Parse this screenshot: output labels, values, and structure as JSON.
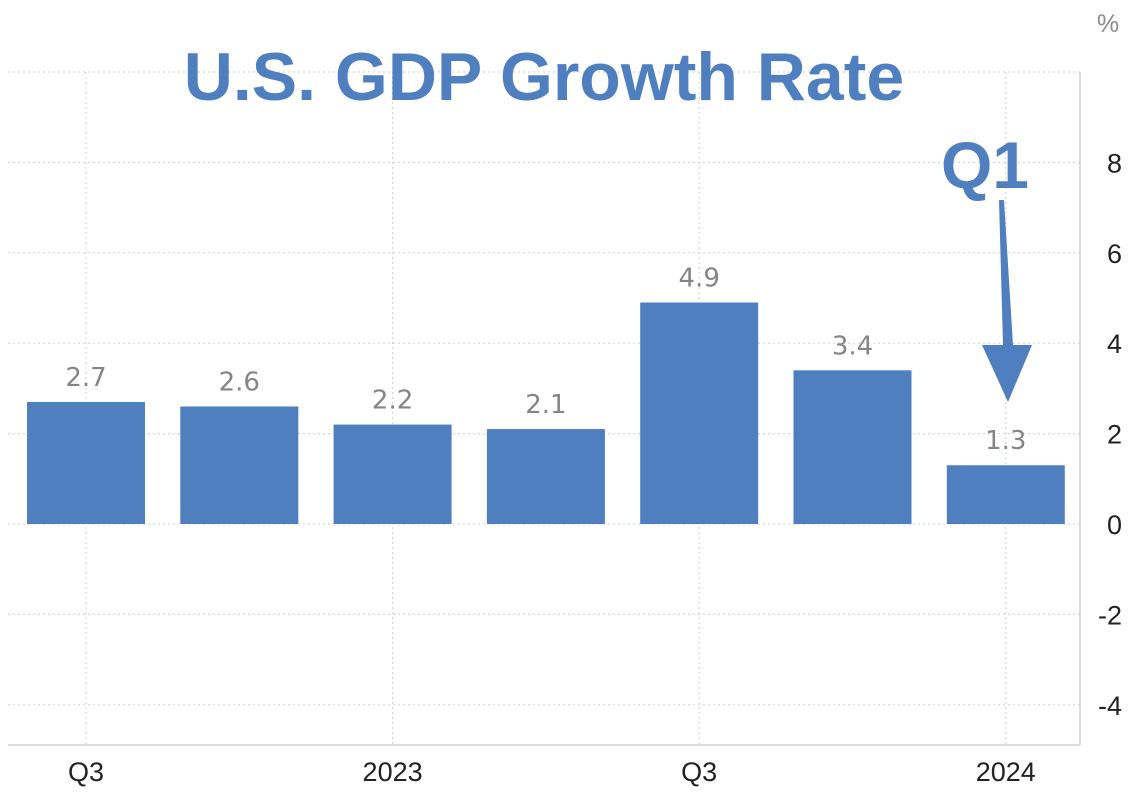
{
  "chart_data": {
    "type": "bar",
    "title": "U.S. GDP Growth Rate",
    "unit": "%",
    "categories": [
      "",
      "",
      "",
      "",
      "",
      "",
      ""
    ],
    "values": [
      2.7,
      2.6,
      2.2,
      2.1,
      4.9,
      3.4,
      1.3
    ],
    "value_labels": [
      "2.7",
      "2.6",
      "2.2",
      "2.1",
      "4.9",
      "3.4",
      "1.3"
    ],
    "x_tick_labels": [
      {
        "bar_index": 0,
        "label": "Q3"
      },
      {
        "bar_index": 2,
        "label": "2023"
      },
      {
        "bar_index": 4,
        "label": "Q3"
      },
      {
        "bar_index": 6,
        "label": "2024"
      }
    ],
    "y_ticks": [
      8,
      6,
      4,
      2,
      0,
      -2,
      -4
    ],
    "ylim": [
      -5,
      10
    ],
    "y_axis_side": "right",
    "grid": true,
    "legend": false,
    "colors": {
      "bar": "#4f7fbf",
      "title": "#4f7fbf",
      "annotation": "#4f7fbf",
      "data_label": "#858585"
    },
    "annotation": {
      "text": "Q1",
      "target_bar_index": 6,
      "shape": "down-arrow"
    }
  }
}
